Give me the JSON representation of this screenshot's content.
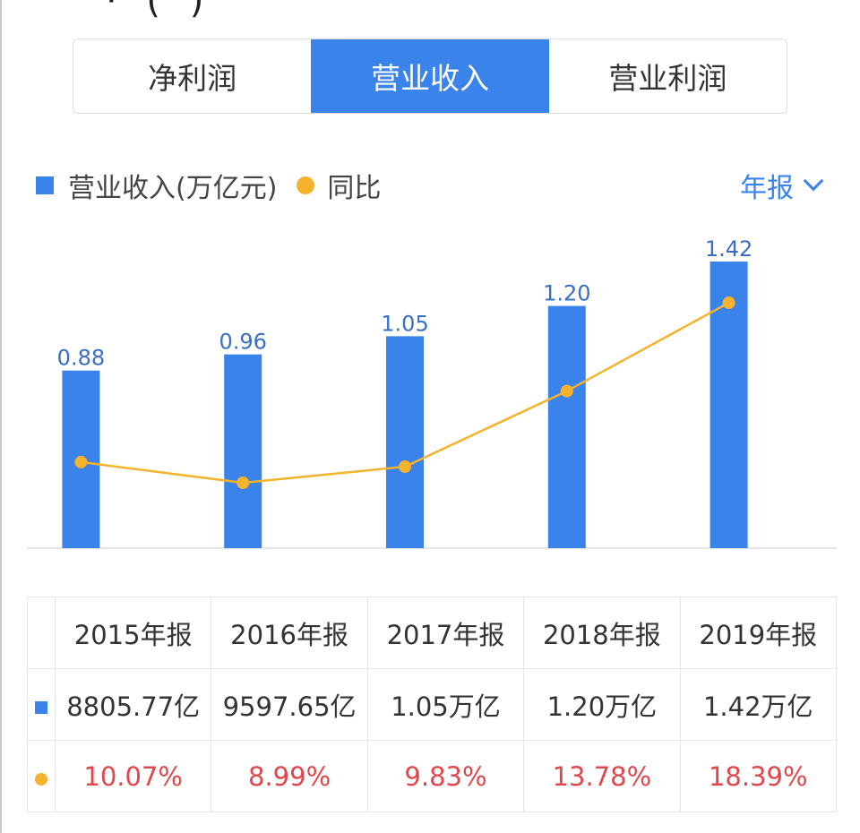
{
  "tabs": [
    {
      "label": "净利润",
      "active": false
    },
    {
      "label": "营业收入",
      "active": true
    },
    {
      "label": "营业利润",
      "active": false
    }
  ],
  "legend": {
    "bar_label": "营业收入(万亿元)",
    "line_label": "同比"
  },
  "period_selector": {
    "label": "年报"
  },
  "colors": {
    "accent": "#3a83ea",
    "line": "#f5b22d",
    "pct_text": "#e0474c"
  },
  "chart_data": {
    "type": "bar",
    "categories": [
      "2015年报",
      "2016年报",
      "2017年报",
      "2018年报",
      "2019年报"
    ],
    "series": [
      {
        "name": "营业收入(万亿元)",
        "type": "bar",
        "values": [
          0.88,
          0.96,
          1.05,
          1.2,
          1.42
        ],
        "labels": [
          "0.88",
          "0.96",
          "1.05",
          "1.20",
          "1.42"
        ]
      },
      {
        "name": "同比",
        "type": "line",
        "values": [
          10.07,
          8.99,
          9.83,
          13.78,
          18.39
        ]
      }
    ]
  },
  "table": {
    "headers": [
      "2015年报",
      "2016年报",
      "2017年报",
      "2018年报",
      "2019年报"
    ],
    "revenue_row": [
      "8805.77亿",
      "9597.65亿",
      "1.05万亿",
      "1.20万亿",
      "1.42万亿"
    ],
    "yoy_row": [
      "10.07%",
      "8.99%",
      "9.83%",
      "13.78%",
      "18.39%"
    ]
  }
}
